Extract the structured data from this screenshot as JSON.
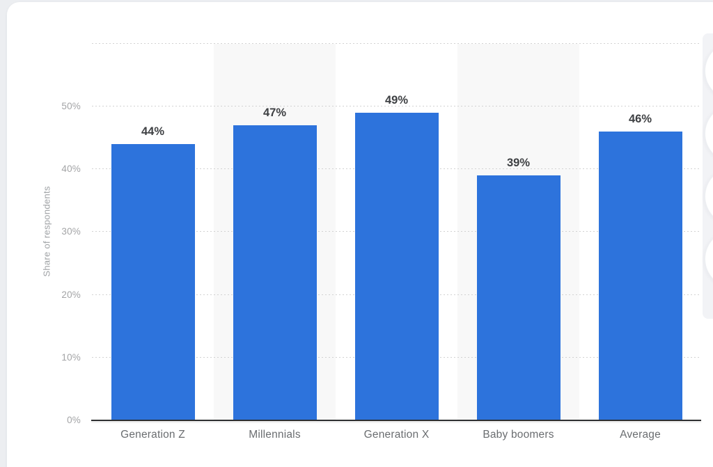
{
  "chart_data": {
    "type": "bar",
    "categories": [
      "Generation Z",
      "Millennials",
      "Generation X",
      "Baby boomers",
      "Average"
    ],
    "values": [
      44,
      47,
      49,
      39,
      46
    ],
    "value_labels": [
      "44%",
      "47%",
      "49%",
      "39%",
      "46%"
    ],
    "title": "",
    "xlabel": "",
    "ylabel": "Share of respondents",
    "ylim": [
      0,
      60
    ],
    "ytick_values": [
      0,
      10,
      20,
      30,
      40,
      50
    ],
    "ytick_labels": [
      "0%",
      "10%",
      "20%",
      "30%",
      "40%",
      "50%"
    ],
    "gridline_values": [
      10,
      20,
      30,
      40,
      50,
      60
    ],
    "grid": true,
    "legend_position": "none",
    "bar_color": "#2d73dc",
    "striped_slots": [
      1,
      3
    ],
    "stripe_color": "#f8f8f8",
    "axis_line_color": "#2e2f31",
    "value_label_color": "#3e4043",
    "tick_label_color": "#a3a4a6",
    "category_label_color": "#6a6d70"
  }
}
